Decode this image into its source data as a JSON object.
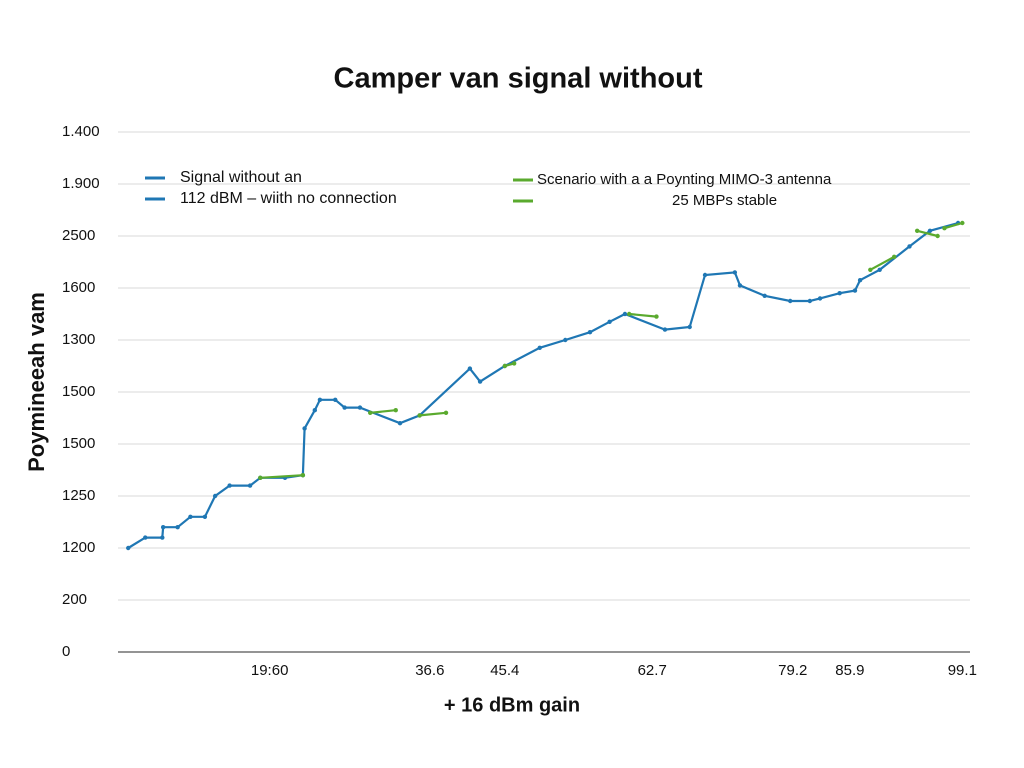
{
  "chart_data": {
    "type": "line",
    "title": "Camper van signal without",
    "xlabel": "+ 16 dBm gain",
    "ylabel": "Poymineeah vam",
    "xlim": [
      0,
      100
    ],
    "xticks": [
      {
        "value": 17.8,
        "label": "19:60"
      },
      36.6,
      45.4,
      62.7,
      79.2,
      85.9,
      99.1
    ],
    "ylim": [
      0,
      10
    ],
    "yticks": [
      {
        "value": 10,
        "label": "1.400"
      },
      {
        "value": 9,
        "label": "1.900"
      },
      {
        "value": 8,
        "label": "2500"
      },
      {
        "value": 7,
        "label": "1600"
      },
      {
        "value": 6,
        "label": "1300"
      },
      {
        "value": 5,
        "label": "1500"
      },
      {
        "value": 4,
        "label": "1500"
      },
      {
        "value": 3,
        "label": "1250"
      },
      {
        "value": 2,
        "label": "1200"
      },
      {
        "value": 1,
        "label": "200"
      },
      0
    ],
    "grid": true,
    "series": [
      {
        "name": "Signal without an\n112 dBM – wiith  no connection",
        "color": "#1f77b4",
        "x": [
          1.2,
          3.2,
          5.2,
          5.3,
          7.0,
          8.5,
          10.2,
          11.4,
          13.1,
          15.5,
          16.7,
          19.6,
          21.7,
          21.9,
          23.1,
          23.7,
          25.5,
          26.6,
          28.4,
          33.1,
          35.4,
          41.3,
          42.5,
          45.4,
          49.5,
          52.5,
          55.4,
          57.7,
          59.5,
          64.2,
          67.1,
          68.9,
          72.4,
          73.0,
          75.9,
          78.9,
          81.2,
          82.4,
          84.7,
          86.5,
          87.1,
          89.4,
          92.9,
          95.3,
          98.6
        ],
        "values": [
          2.0,
          2.2,
          2.2,
          2.4,
          2.4,
          2.6,
          2.6,
          3.0,
          3.2,
          3.2,
          3.35,
          3.35,
          3.4,
          4.3,
          4.65,
          4.85,
          4.85,
          4.7,
          4.7,
          4.4,
          4.55,
          5.45,
          5.2,
          5.5,
          5.85,
          6.0,
          6.15,
          6.35,
          6.5,
          6.2,
          6.25,
          7.25,
          7.3,
          7.05,
          6.85,
          6.75,
          6.75,
          6.8,
          6.9,
          6.95,
          7.15,
          7.35,
          7.8,
          8.1,
          8.25
        ]
      },
      {
        "name": "Scenario with a a  Poynting MIMO-3 antenna\n25 MBPs stable",
        "color": "#5aaa2e",
        "x": [
          16.7,
          21.7,
          null,
          29.6,
          32.6,
          null,
          35.4,
          38.5,
          null,
          45.4,
          46.5,
          null,
          60.0,
          63.2,
          null,
          88.3,
          91.1,
          null,
          93.8,
          96.2,
          null,
          97.0,
          99.1
        ],
        "values": [
          3.35,
          3.4,
          null,
          4.6,
          4.65,
          null,
          4.55,
          4.6,
          null,
          5.5,
          5.55,
          null,
          6.5,
          6.45,
          null,
          7.35,
          7.6,
          null,
          8.1,
          8.0,
          null,
          8.15,
          8.25
        ]
      }
    ]
  }
}
